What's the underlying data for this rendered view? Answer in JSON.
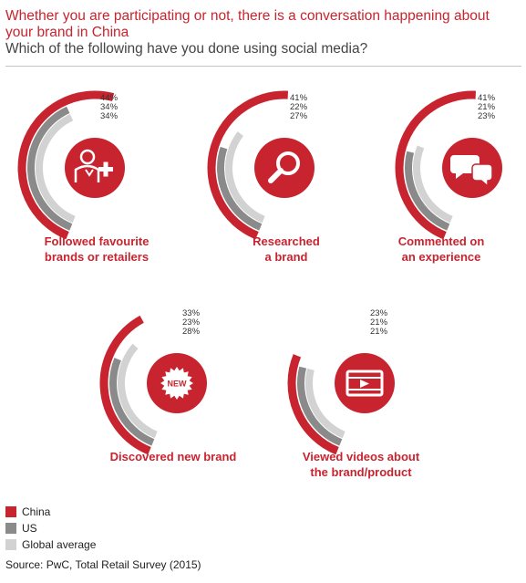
{
  "header": {
    "title": "Whether you are participating or not, there is a conversation happening about your brand in China",
    "subtitle": "Which of the following have you done using social media?"
  },
  "colors": {
    "China": "#c8242f",
    "US": "#8a8a8a",
    "Global average": "#d2d2d2"
  },
  "chart_data": {
    "type": "radial-bar",
    "series_names": [
      "China",
      "US",
      "Global average"
    ],
    "panels": [
      {
        "label": "Followed favourite\nbrands or retailers",
        "values": [
          44,
          34,
          34
        ],
        "value_labels": [
          "44%",
          "34%",
          "34%"
        ],
        "icon": "person-plus-icon"
      },
      {
        "label": "Researched\na brand",
        "values": [
          41,
          22,
          27
        ],
        "value_labels": [
          "41%",
          "22%",
          "27%"
        ],
        "icon": "magnifier-icon"
      },
      {
        "label": "Commented on\nan experience",
        "values": [
          41,
          21,
          23
        ],
        "value_labels": [
          "41%",
          "21%",
          "23%"
        ],
        "icon": "speech-bubbles-icon"
      },
      {
        "label": "Discovered new brand",
        "values": [
          33,
          23,
          28
        ],
        "value_labels": [
          "33%",
          "23%",
          "28%"
        ],
        "icon": "new-badge-icon",
        "icon_text": "NEW"
      },
      {
        "label": "Viewed videos about\nthe brand/product",
        "values": [
          23,
          21,
          21
        ],
        "value_labels": [
          "23%",
          "21%",
          "21%"
        ],
        "icon": "video-player-icon"
      }
    ]
  },
  "legend": {
    "items": [
      "China",
      "US",
      "Global average"
    ]
  },
  "source": "Source: PwC, Total Retail Survey (2015)"
}
